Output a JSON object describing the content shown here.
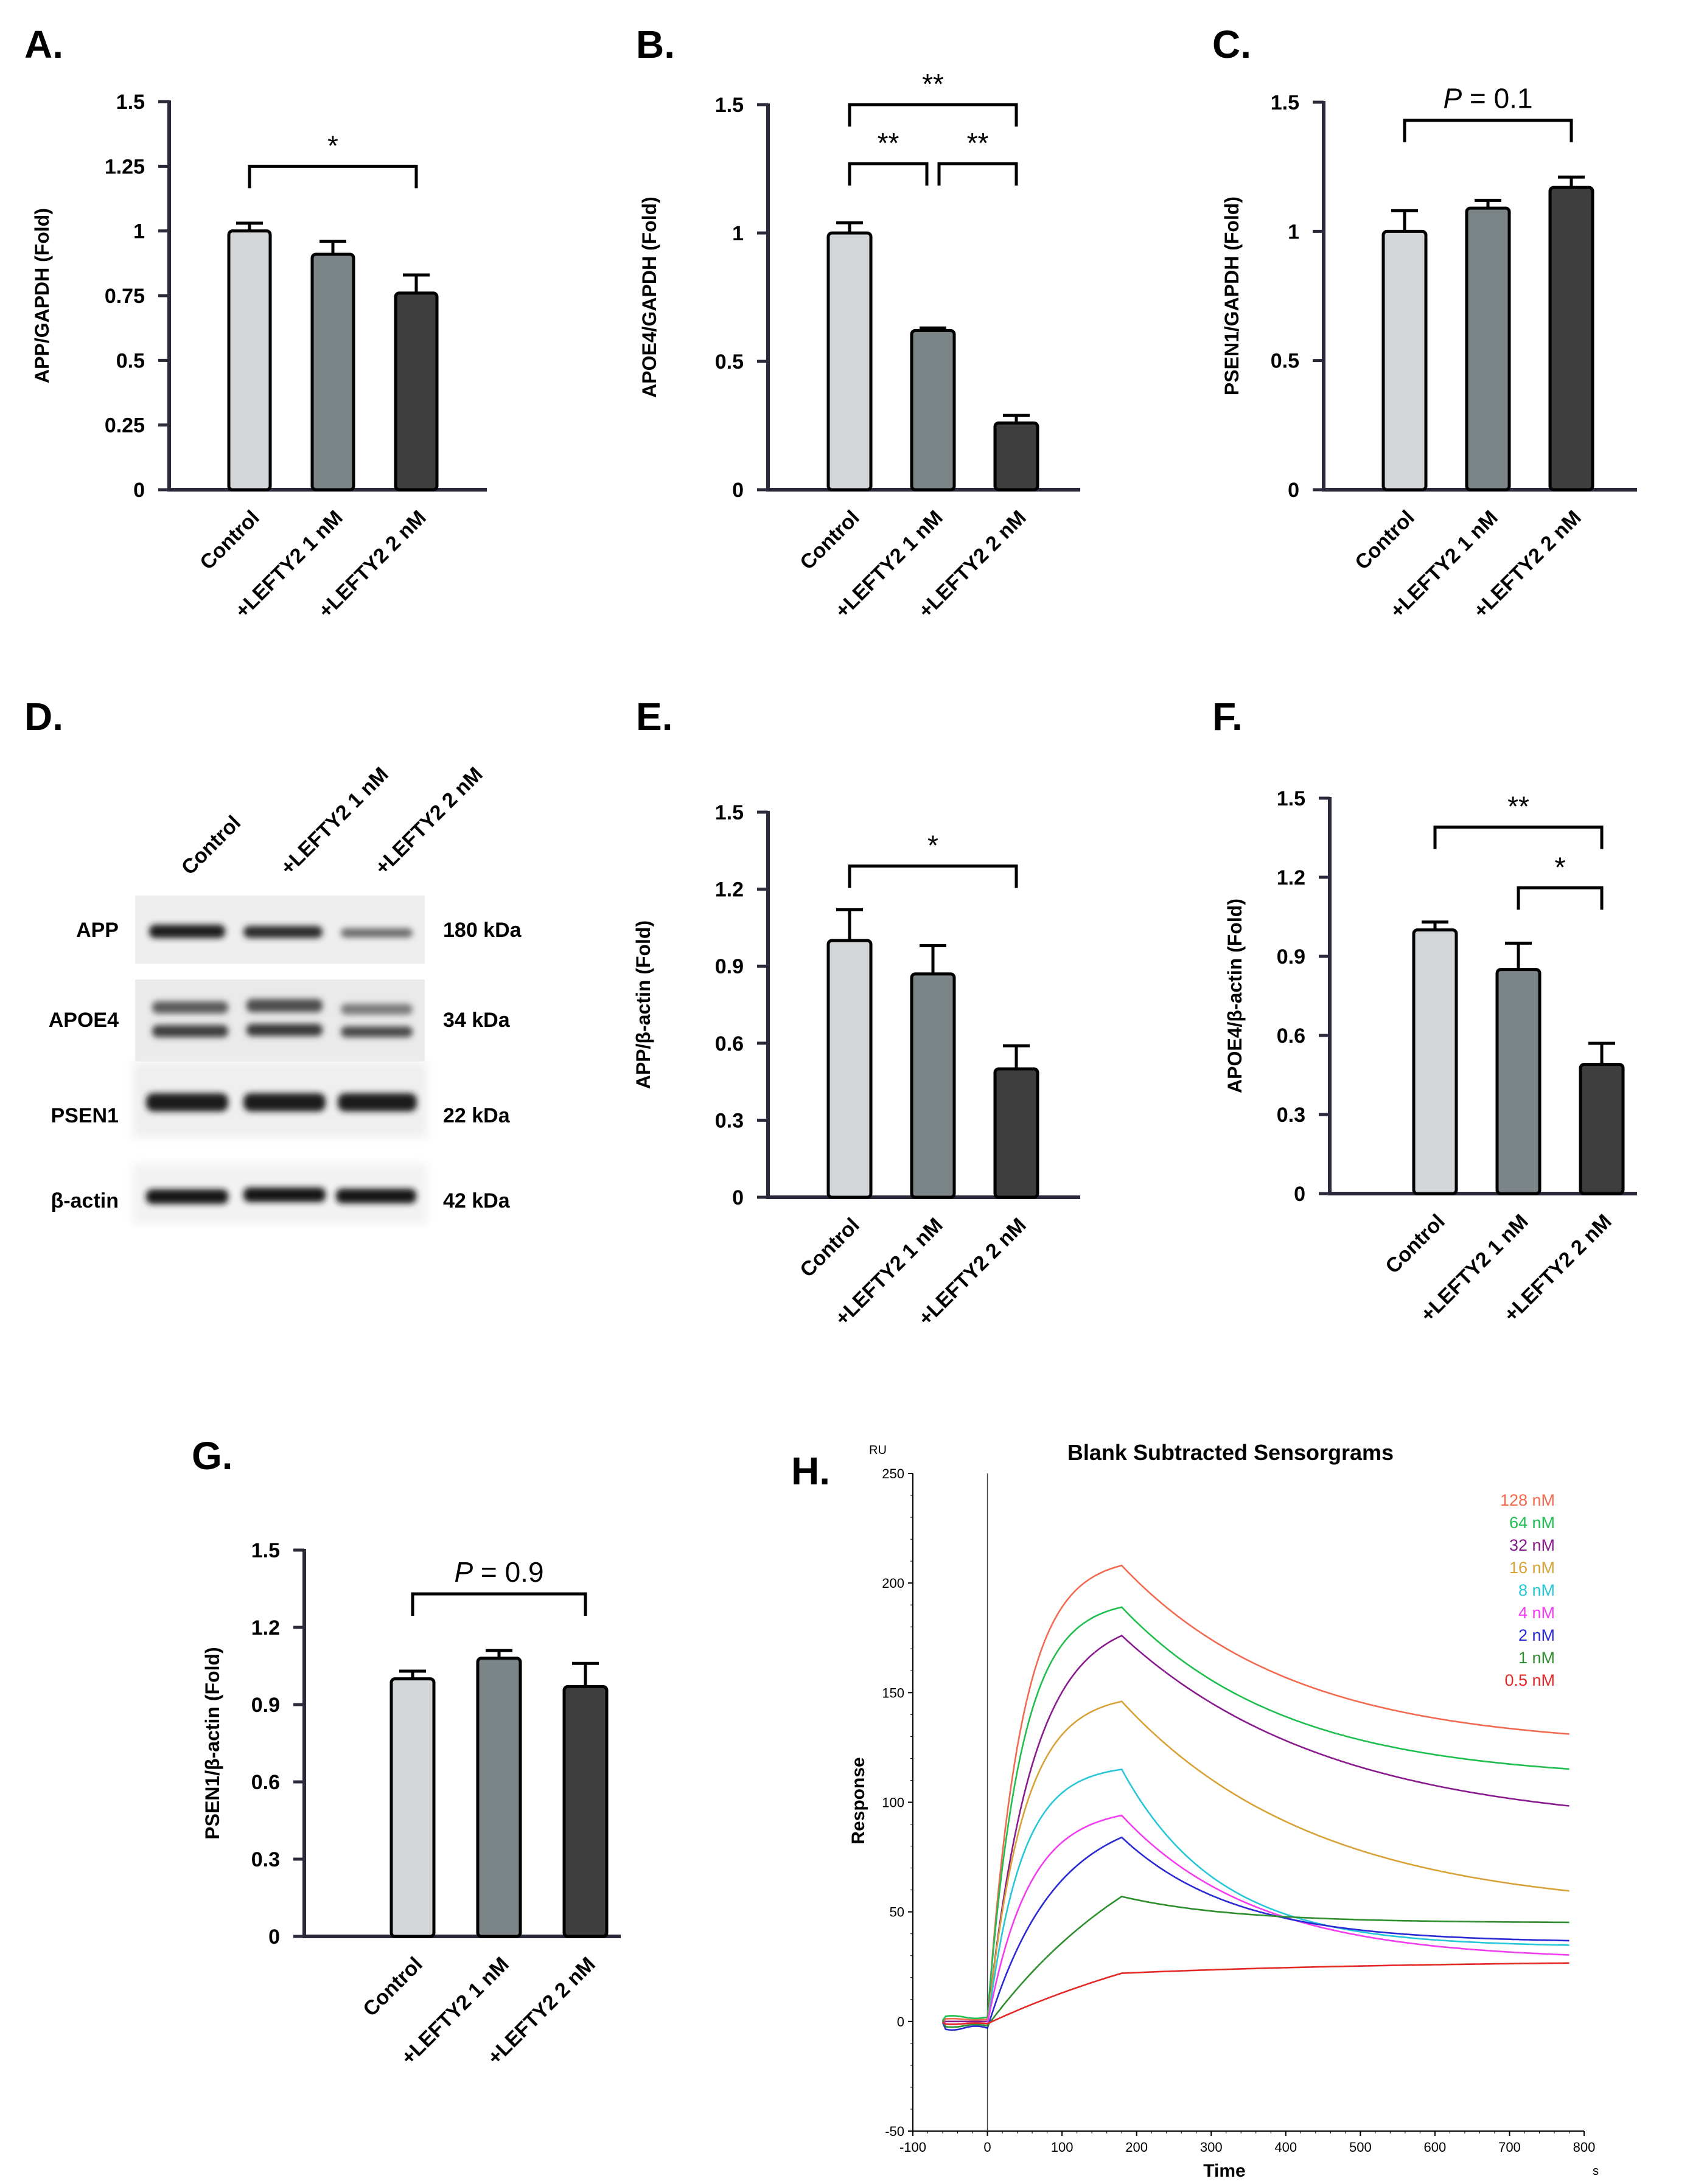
{
  "panels": {
    "A": "A.",
    "B": "B.",
    "C": "C.",
    "D": "D.",
    "E": "E.",
    "F": "F.",
    "G": "G.",
    "H": "H."
  },
  "colors": {
    "control": "#d2d6d9",
    "lefty1": "#7b8487",
    "lefty2": "#3e3e3e",
    "axis": "#2a2a3a"
  },
  "western_blot": {
    "lanes": [
      "Control",
      "+LEFTY2 1 nM",
      "+LEFTY2 2 nM"
    ],
    "bands": [
      {
        "protein": "APP",
        "size": "180 kDa"
      },
      {
        "protein": "APOE4",
        "size": "34 kDa"
      },
      {
        "protein": "PSEN1",
        "size": "22 kDa"
      },
      {
        "protein": "β-actin",
        "size": "42 kDa"
      }
    ]
  },
  "chart_data": [
    {
      "id": "A",
      "type": "bar",
      "categories": [
        "Control",
        "+LEFTY2 1 nM",
        "+LEFTY2 2 nM"
      ],
      "values": [
        1.0,
        0.91,
        0.76
      ],
      "errors": [
        0.03,
        0.05,
        0.07
      ],
      "ylabel": "APP/GAPDH (Fold)",
      "ylim": [
        0,
        1.5
      ],
      "yticks": [
        0,
        0.25,
        0.5,
        0.75,
        1.0,
        1.25,
        1.5
      ],
      "ytick_labels": [
        "0",
        "0.25",
        "0.5",
        "0.75",
        "1",
        "1.25",
        "1.5"
      ],
      "brackets": [
        {
          "from": 0,
          "to": 2,
          "y": 1.25,
          "label": "*"
        }
      ]
    },
    {
      "id": "B",
      "type": "bar",
      "categories": [
        "Control",
        "+LEFTY2 1 nM",
        "+LEFTY2 2 nM"
      ],
      "values": [
        1.0,
        0.62,
        0.26
      ],
      "errors": [
        0.04,
        0.01,
        0.03
      ],
      "ylabel": "APOE4/GAPDH (Fold)",
      "ylim": [
        0,
        1.5
      ],
      "yticks": [
        0,
        0.5,
        1.0,
        1.5
      ],
      "ytick_labels": [
        "0",
        "0.5",
        "1",
        "1.5"
      ],
      "brackets": [
        {
          "from": 0,
          "to": 2,
          "y": 1.5,
          "label": "**"
        },
        {
          "from": 0,
          "to": 1,
          "y": 1.27,
          "label": "**"
        },
        {
          "from": 1,
          "to": 2,
          "y": 1.27,
          "label": "**"
        }
      ]
    },
    {
      "id": "C",
      "type": "bar",
      "categories": [
        "Control",
        "+LEFTY2 1 nM",
        "+LEFTY2 2 nM"
      ],
      "values": [
        1.0,
        1.09,
        1.17
      ],
      "errors": [
        0.08,
        0.03,
        0.04
      ],
      "ylabel": "PSEN1/GAPDH (Fold)",
      "ylim": [
        0,
        1.5
      ],
      "yticks": [
        0,
        0.5,
        1.0,
        1.5
      ],
      "ytick_labels": [
        "0",
        "0.5",
        "1",
        "1.5"
      ],
      "brackets": [
        {
          "from": 0,
          "to": 2,
          "y": 1.43,
          "label": "P = 0.1",
          "p": true
        }
      ]
    },
    {
      "id": "E",
      "type": "bar",
      "categories": [
        "Control",
        "+LEFTY2 1 nM",
        "+LEFTY2 2 nM"
      ],
      "values": [
        1.0,
        0.87,
        0.5
      ],
      "errors": [
        0.12,
        0.11,
        0.09
      ],
      "ylabel": "APP/β-actin (Fold)",
      "ylim": [
        0,
        1.5
      ],
      "yticks": [
        0,
        0.3,
        0.6,
        0.9,
        1.2,
        1.5
      ],
      "ytick_labels": [
        "0",
        "0.3",
        "0.6",
        "0.9",
        "1.2",
        "1.5"
      ],
      "brackets": [
        {
          "from": 0,
          "to": 2,
          "y": 1.29,
          "label": "*"
        }
      ]
    },
    {
      "id": "F",
      "type": "bar",
      "categories": [
        "Control",
        "+LEFTY2 1 nM",
        "+LEFTY2 2 nM"
      ],
      "values": [
        1.0,
        0.85,
        0.49
      ],
      "errors": [
        0.03,
        0.1,
        0.08
      ],
      "ylabel": "APOE4/β-actin (Fold)",
      "ylim": [
        0,
        1.5
      ],
      "yticks": [
        0,
        0.3,
        0.6,
        0.9,
        1.2,
        1.5
      ],
      "ytick_labels": [
        "0",
        "0.3",
        "0.6",
        "0.9",
        "1.2",
        "1.5"
      ],
      "brackets": [
        {
          "from": 0,
          "to": 2,
          "y": 1.39,
          "label": "**"
        },
        {
          "from": 1,
          "to": 2,
          "y": 1.16,
          "label": "*"
        }
      ]
    },
    {
      "id": "G",
      "type": "bar",
      "categories": [
        "Control",
        "+LEFTY2 1 nM",
        "+LEFTY2 2 nM"
      ],
      "values": [
        1.0,
        1.08,
        0.97
      ],
      "errors": [
        0.03,
        0.03,
        0.09
      ],
      "ylabel": "PSEN1/β-actin (Fold)",
      "ylim": [
        0,
        1.5
      ],
      "yticks": [
        0,
        0.3,
        0.6,
        0.9,
        1.2,
        1.5
      ],
      "ytick_labels": [
        "0",
        "0.3",
        "0.6",
        "0.9",
        "1.2",
        "1.5"
      ],
      "brackets": [
        {
          "from": 0,
          "to": 2,
          "y": 1.33,
          "label": "P = 0.9",
          "p": true
        }
      ]
    },
    {
      "id": "H",
      "type": "line",
      "title": "Blank Subtracted Sensorgrams",
      "xlabel": "Time",
      "ylabel": "Response",
      "x_unit": "s",
      "y_unit": "RU",
      "xlim": [
        -100,
        800
      ],
      "ylim": [
        -50,
        250
      ],
      "xticks": [
        -100,
        0,
        100,
        200,
        300,
        400,
        500,
        600,
        700,
        800
      ],
      "yticks": [
        -50,
        0,
        50,
        100,
        150,
        200,
        250
      ],
      "injection_start": 0,
      "injection_end": 180,
      "series": [
        {
          "name": "128 nM",
          "color": "#f26a4f",
          "baseline": 1,
          "peak": 208,
          "tau_on": 45,
          "plateau": 125,
          "tau_off": 230
        },
        {
          "name": "64 nM",
          "color": "#1fbf4f",
          "baseline": 2,
          "peak": 189,
          "tau_on": 45,
          "plateau": 110,
          "tau_off": 220
        },
        {
          "name": "32 nM",
          "color": "#8a1b8f",
          "baseline": 0,
          "peak": 176,
          "tau_on": 60,
          "plateau": 88,
          "tau_off": 280
        },
        {
          "name": "16 nM",
          "color": "#d8a237",
          "baseline": -1,
          "peak": 146,
          "tau_on": 48,
          "plateau": 50,
          "tau_off": 260
        },
        {
          "name": "8 nM",
          "color": "#27c6d8",
          "baseline": -2,
          "peak": 115,
          "tau_on": 45,
          "plateau": 34,
          "tau_off": 130
        },
        {
          "name": "4 nM",
          "color": "#f23ef0",
          "baseline": -1,
          "peak": 94,
          "tau_on": 55,
          "plateau": 28,
          "tau_off": 180
        },
        {
          "name": "2 nM",
          "color": "#2a2ad4",
          "baseline": -3,
          "peak": 84,
          "tau_on": 90,
          "plateau": 36,
          "tau_off": 150
        },
        {
          "name": "1 nM",
          "color": "#2f8f2f",
          "baseline": -2,
          "peak": 57,
          "tau_on": 250,
          "plateau": 45,
          "tau_off": 150
        },
        {
          "name": "0.5 nM",
          "color": "#e42828",
          "baseline": -1,
          "peak": 22,
          "tau_on": 400,
          "plateau": 28,
          "tau_off": 400
        }
      ]
    }
  ]
}
